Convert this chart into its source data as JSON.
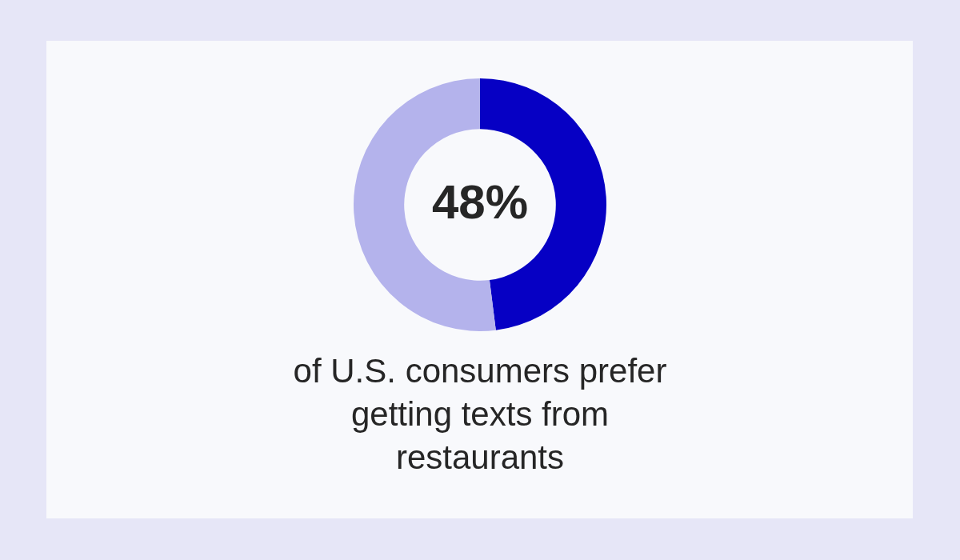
{
  "chart_data": {
    "type": "donut",
    "categories": [
      null,
      null
    ],
    "values": [
      48,
      52
    ],
    "colors": [
      "#0600c4",
      "#b4b3ec"
    ],
    "value_labels": [
      "48%",
      null
    ],
    "annotations": [
      "of U.S. consumers prefer getting texts from restaurants"
    ]
  }
}
